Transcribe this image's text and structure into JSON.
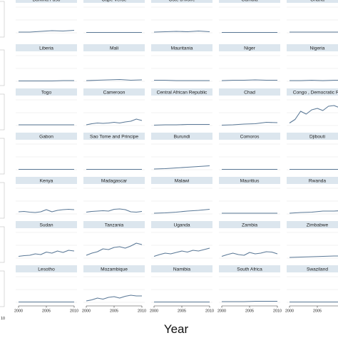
{
  "chart_data": {
    "type": "line",
    "xlabel": "Year",
    "ylabel": "",
    "xlim": [
      2000,
      2010
    ],
    "xticks": [
      "2000",
      "2005",
      "2010"
    ],
    "grid": true,
    "panels": [
      {
        "title": "Burkina Faso",
        "x": [
          2000,
          2002,
          2004,
          2006,
          2008,
          2010
        ],
        "y": [
          0.3,
          0.3,
          0.32,
          0.34,
          0.33,
          0.35
        ]
      },
      {
        "title": "Cape Verde",
        "x": [
          2000,
          2002,
          2004,
          2006,
          2008,
          2010
        ],
        "y": [
          0.29,
          0.29,
          0.29,
          0.29,
          0.29,
          0.29
        ]
      },
      {
        "title": "Cote d'Ivoire",
        "x": [
          2000,
          2002,
          2004,
          2006,
          2008,
          2010
        ],
        "y": [
          0.3,
          0.31,
          0.32,
          0.31,
          0.33,
          0.31
        ]
      },
      {
        "title": "Gambia",
        "x": [
          2000,
          2002,
          2004,
          2006,
          2008,
          2010
        ],
        "y": [
          0.29,
          0.29,
          0.29,
          0.29,
          0.29,
          0.29
        ]
      },
      {
        "title": "Ghana",
        "x": [
          2000,
          2002,
          2004,
          2006,
          2008,
          2010
        ],
        "y": [
          0.3,
          0.3,
          0.3,
          0.3,
          0.3,
          0.3
        ]
      },
      {
        "title": "Liberia",
        "x": [
          2000,
          2002,
          2004,
          2006,
          2008,
          2010
        ],
        "y": [
          0.29,
          0.29,
          0.29,
          0.29,
          0.3,
          0.3
        ]
      },
      {
        "title": "Mali",
        "x": [
          2000,
          2002,
          2004,
          2006,
          2008,
          2010
        ],
        "y": [
          0.3,
          0.31,
          0.32,
          0.33,
          0.31,
          0.32
        ]
      },
      {
        "title": "Mauritania",
        "x": [
          2000,
          2002,
          2004,
          2006,
          2008,
          2010
        ],
        "y": [
          0.31,
          0.31,
          0.3,
          0.3,
          0.3,
          0.3
        ]
      },
      {
        "title": "Niger",
        "x": [
          2000,
          2002,
          2004,
          2006,
          2008,
          2010
        ],
        "y": [
          0.3,
          0.31,
          0.31,
          0.32,
          0.31,
          0.31
        ]
      },
      {
        "title": "Nigeria",
        "x": [
          2000,
          2002,
          2004,
          2006,
          2008,
          2010
        ],
        "y": [
          0.3,
          0.3,
          0.31,
          0.3,
          0.31,
          0.31
        ]
      },
      {
        "title": "Togo",
        "x": [
          2000,
          2002,
          2004,
          2006,
          2008,
          2010
        ],
        "y": [
          0.3,
          0.3,
          0.3,
          0.3,
          0.3,
          0.3
        ]
      },
      {
        "title": "Cameroon",
        "x": [
          2000,
          2001,
          2002,
          2003,
          2004,
          2005,
          2006,
          2007,
          2008,
          2009,
          2010
        ],
        "y": [
          0.3,
          0.33,
          0.35,
          0.34,
          0.35,
          0.37,
          0.35,
          0.38,
          0.4,
          0.46,
          0.42
        ]
      },
      {
        "title": "Central African Republic",
        "x": [
          2000,
          2002,
          2004,
          2006,
          2008,
          2010
        ],
        "y": [
          0.29,
          0.3,
          0.3,
          0.31,
          0.31,
          0.31
        ]
      },
      {
        "title": "Chad",
        "x": [
          2000,
          2002,
          2004,
          2006,
          2008,
          2010
        ],
        "y": [
          0.29,
          0.3,
          0.32,
          0.33,
          0.37,
          0.36
        ]
      },
      {
        "title": "Congo , Democratic Re",
        "x": [
          2000,
          2001,
          2002,
          2003,
          2004,
          2005,
          2006,
          2007,
          2008,
          2009,
          2010
        ],
        "y": [
          0.35,
          0.45,
          0.68,
          0.6,
          0.72,
          0.76,
          0.7,
          0.82,
          0.84,
          0.78,
          0.9
        ]
      },
      {
        "title": "Gabon",
        "x": [
          2000,
          2002,
          2004,
          2006,
          2008,
          2010
        ],
        "y": [
          0.29,
          0.29,
          0.29,
          0.29,
          0.29,
          0.29
        ]
      },
      {
        "title": "Sao Tome and Principe",
        "x": [
          2000,
          2002,
          2004,
          2006,
          2008,
          2010
        ],
        "y": [
          0.29,
          0.29,
          0.29,
          0.29,
          0.29,
          0.29
        ]
      },
      {
        "title": "Burundi",
        "x": [
          2000,
          2002,
          2004,
          2006,
          2008,
          2010
        ],
        "y": [
          0.3,
          0.31,
          0.33,
          0.35,
          0.37,
          0.39
        ]
      },
      {
        "title": "Comoros",
        "x": [
          2000,
          2002,
          2004,
          2006,
          2008,
          2010
        ],
        "y": [
          0.29,
          0.29,
          0.29,
          0.29,
          0.29,
          0.29
        ]
      },
      {
        "title": "Djibouti",
        "x": [
          2000,
          2002,
          2004,
          2006,
          2008,
          2010
        ],
        "y": [
          0.29,
          0.29,
          0.29,
          0.29,
          0.29,
          0.29
        ]
      },
      {
        "title": "Kenya",
        "x": [
          2000,
          2001,
          2002,
          2003,
          2004,
          2005,
          2006,
          2007,
          2008,
          2009,
          2010
        ],
        "y": [
          0.34,
          0.35,
          0.33,
          0.32,
          0.34,
          0.4,
          0.34,
          0.38,
          0.4,
          0.41,
          0.4
        ]
      },
      {
        "title": "Madagascar",
        "x": [
          2000,
          2001,
          2002,
          2003,
          2004,
          2005,
          2006,
          2007,
          2008,
          2009,
          2010
        ],
        "y": [
          0.33,
          0.35,
          0.36,
          0.37,
          0.36,
          0.41,
          0.42,
          0.4,
          0.34,
          0.33,
          0.35
        ]
      },
      {
        "title": "Malawi",
        "x": [
          2000,
          2002,
          2004,
          2006,
          2008,
          2010
        ],
        "y": [
          0.3,
          0.31,
          0.33,
          0.36,
          0.38,
          0.41
        ]
      },
      {
        "title": "Mauritius",
        "x": [
          2000,
          2002,
          2004,
          2006,
          2008,
          2010
        ],
        "y": [
          0.3,
          0.3,
          0.3,
          0.3,
          0.3,
          0.3
        ]
      },
      {
        "title": "Rwanda",
        "x": [
          2000,
          2002,
          2004,
          2006,
          2008,
          2010
        ],
        "y": [
          0.3,
          0.32,
          0.33,
          0.36,
          0.36,
          0.38
        ]
      },
      {
        "title": "Sudan",
        "x": [
          2000,
          2001,
          2002,
          2003,
          2004,
          2005,
          2006,
          2007,
          2008,
          2009,
          2010
        ],
        "y": [
          0.33,
          0.35,
          0.36,
          0.4,
          0.38,
          0.45,
          0.42,
          0.48,
          0.44,
          0.5,
          0.48
        ]
      },
      {
        "title": "Tanzania",
        "x": [
          2000,
          2001,
          2002,
          2003,
          2004,
          2005,
          2006,
          2007,
          2008,
          2009,
          2010
        ],
        "y": [
          0.36,
          0.42,
          0.46,
          0.54,
          0.52,
          0.58,
          0.6,
          0.56,
          0.62,
          0.7,
          0.66
        ]
      },
      {
        "title": "Uganda",
        "x": [
          2000,
          2001,
          2002,
          2003,
          2004,
          2005,
          2006,
          2007,
          2008,
          2009,
          2010
        ],
        "y": [
          0.33,
          0.38,
          0.42,
          0.4,
          0.44,
          0.48,
          0.45,
          0.5,
          0.48,
          0.52,
          0.56
        ]
      },
      {
        "title": "Zambia",
        "x": [
          2000,
          2001,
          2002,
          2003,
          2004,
          2005,
          2006,
          2007,
          2008,
          2009,
          2010
        ],
        "y": [
          0.33,
          0.38,
          0.42,
          0.38,
          0.36,
          0.44,
          0.4,
          0.42,
          0.46,
          0.45,
          0.4
        ]
      },
      {
        "title": "Zimbabwe",
        "x": [
          2000,
          2002,
          2004,
          2006,
          2008,
          2010
        ],
        "y": [
          0.3,
          0.31,
          0.32,
          0.33,
          0.34,
          0.34
        ]
      },
      {
        "title": "Lesotho",
        "x": [
          2000,
          2002,
          2004,
          2006,
          2008,
          2010
        ],
        "y": [
          0.29,
          0.29,
          0.29,
          0.29,
          0.29,
          0.29
        ]
      },
      {
        "title": "Mozambique",
        "x": [
          2000,
          2001,
          2002,
          2003,
          2004,
          2005,
          2006,
          2007,
          2008,
          2009,
          2010
        ],
        "y": [
          0.32,
          0.35,
          0.4,
          0.37,
          0.42,
          0.44,
          0.4,
          0.45,
          0.48,
          0.46,
          0.46
        ]
      },
      {
        "title": "Namibia",
        "x": [
          2000,
          2002,
          2004,
          2006,
          2008,
          2010
        ],
        "y": [
          0.29,
          0.29,
          0.29,
          0.29,
          0.29,
          0.29
        ]
      },
      {
        "title": "South Africa",
        "x": [
          2000,
          2002,
          2004,
          2006,
          2008,
          2010
        ],
        "y": [
          0.3,
          0.3,
          0.3,
          0.31,
          0.31,
          0.31
        ]
      },
      {
        "title": "Swaziland",
        "x": [
          2000,
          2002,
          2004,
          2006,
          2008,
          2010
        ],
        "y": [
          0.29,
          0.29,
          0.29,
          0.29,
          0.29,
          0.29
        ]
      }
    ]
  },
  "colors": {
    "line": "#5a7896",
    "title_bg": "#dce6ee",
    "grid": "#e5e5e5",
    "axis": "#333333"
  }
}
